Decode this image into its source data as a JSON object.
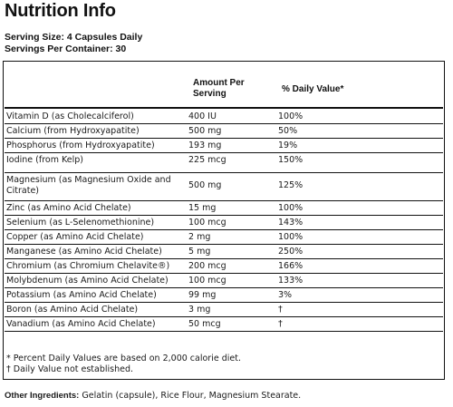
{
  "title": "Nutrition Info",
  "serving_size": "Serving Size: 4 Capsules Daily",
  "servings_per_container": "Servings Per Container: 30",
  "table": {
    "header_amount": "Amount Per Serving",
    "header_dv": "% Daily Value*",
    "rows": [
      {
        "name": "Vitamin D (as Cholecalciferol)",
        "amount": "400 IU",
        "dv": "100%"
      },
      {
        "name": "Calcium (from Hydroxyapatite)",
        "amount": "500 mg",
        "dv": "50%"
      },
      {
        "name": "Phosphorus (from Hydroxyapatite)",
        "amount": "193 mg",
        "dv": "19%"
      },
      {
        "name": "Iodine (from Kelp)",
        "amount": "225 mcg",
        "dv": "150%"
      },
      {
        "name": "Magnesium (as Magnesium Oxide and Citrate)",
        "amount": "500 mg",
        "dv": "125%"
      },
      {
        "name": "Zinc (as Amino Acid Chelate)",
        "amount": "15 mg",
        "dv": "100%"
      },
      {
        "name": "Selenium (as L-Selenomethionine)",
        "amount": "100 mcg",
        "dv": "143%"
      },
      {
        "name": "Copper (as Amino Acid Chelate)",
        "amount": "2 mg",
        "dv": "100%"
      },
      {
        "name": "Manganese (as Amino Acid Chelate)",
        "amount": "5 mg",
        "dv": "250%"
      },
      {
        "name": "Chromium (as Chromium Chelavite®)",
        "amount": "200 mcg",
        "dv": "166%"
      },
      {
        "name": "Molybdenum (as Amino Acid Chelate)",
        "amount": "100 mcg",
        "dv": "133%"
      },
      {
        "name": "Potassium (as Amino Acid Chelate)",
        "amount": "99 mg",
        "dv": "3%"
      },
      {
        "name": "Boron (as Amino Acid Chelate)",
        "amount": "3 mg",
        "dv": "†"
      },
      {
        "name": "Vanadium (as Amino Acid Chelate)",
        "amount": "50 mcg",
        "dv": "†"
      }
    ]
  },
  "footnotes": {
    "dv_note": "* Percent Daily Values are based on 2,000 calorie diet.",
    "dagger_note": "† Daily Value not established."
  },
  "other_ingredients": {
    "label": "Other Ingredients:",
    "text": "Gelatin (capsule), Rice Flour, Magnesium Stearate."
  }
}
